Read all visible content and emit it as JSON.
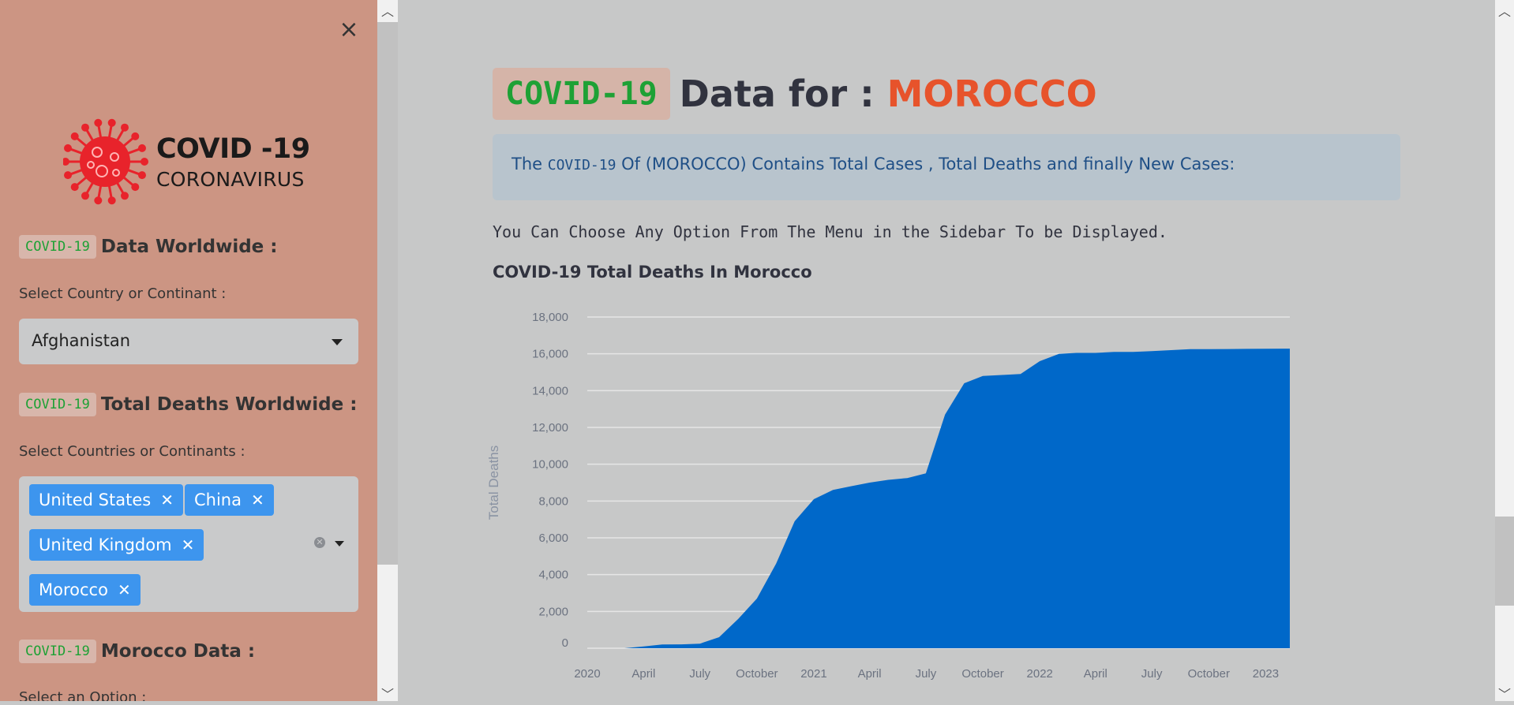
{
  "sidebar": {
    "close_label": "×",
    "logo": {
      "title": "COVID -19",
      "subtitle": "CORONAVIRUS"
    },
    "sections": [
      {
        "badge": "COVID-19",
        "heading": "Data Worldwide :",
        "label": "Select Country or Continant :",
        "select_value": "Afghanistan"
      },
      {
        "badge": "COVID-19",
        "heading": "Total Deaths Worldwide :",
        "label": "Select Countries or Continants :",
        "tags": [
          "United States",
          "China",
          "United Kingdom",
          "Morocco"
        ]
      },
      {
        "badge": "COVID-19",
        "heading": "Morocco Data :",
        "label": "Select an Option :"
      }
    ]
  },
  "main": {
    "title_badge": "COVID-19",
    "title_text": "Data for :",
    "title_country": "MOROCCO",
    "info_prefix": "The",
    "info_code": "COVID-19",
    "info_suffix": "Of (MOROCCO) Contains Total Cases , Total Deaths and finally New Cases:",
    "hint": "You Can Choose Any Option From The Menu in the Sidebar To be Displayed.",
    "chart_title": "COVID-19 Total Deaths In Morocco"
  },
  "colors": {
    "sidebar_bg": "#cc9583",
    "main_bg": "#c7c8c8",
    "area_fill": "#0068c9",
    "tag_bg": "#3d95ee",
    "accent_green": "#1ea135",
    "accent_orange": "#e7532b"
  },
  "chart_data": {
    "type": "area",
    "title": "COVID-19 Total Deaths In Morocco",
    "xlabel": "",
    "ylabel": "Total Deaths",
    "ylim": [
      0,
      18000
    ],
    "y_ticks": [
      "0",
      "2,000",
      "4,000",
      "6,000",
      "8,000",
      "10,000",
      "12,000",
      "14,000",
      "16,000",
      "18,000"
    ],
    "x_ticks": [
      "2020",
      "April",
      "July",
      "October",
      "2021",
      "April",
      "July",
      "October",
      "2022",
      "April",
      "July",
      "October",
      "2023"
    ],
    "grid": true,
    "series": [
      {
        "x": [
          "2020-03-01",
          "2020-04-01",
          "2020-05-01",
          "2020-06-01",
          "2020-07-01",
          "2020-08-01",
          "2020-09-01",
          "2020-10-01",
          "2020-11-01",
          "2020-12-01",
          "2021-01-01",
          "2021-02-01",
          "2021-03-01",
          "2021-04-01",
          "2021-05-01",
          "2021-06-01",
          "2021-07-01",
          "2021-08-01",
          "2021-09-01",
          "2021-10-01",
          "2021-11-01",
          "2021-12-01",
          "2022-01-01",
          "2022-02-01",
          "2022-03-01",
          "2022-04-01",
          "2022-05-01",
          "2022-06-01",
          "2022-07-01",
          "2022-08-01",
          "2022-09-01",
          "2022-10-01",
          "2022-11-01",
          "2022-12-01",
          "2023-01-01",
          "2023-02-01",
          "2023-03-01"
        ],
        "values": [
          0,
          100,
          200,
          210,
          250,
          600,
          1600,
          2700,
          4600,
          6900,
          8100,
          8600,
          8800,
          9000,
          9150,
          9250,
          9500,
          12700,
          14400,
          14800,
          14850,
          14900,
          15600,
          16000,
          16050,
          16050,
          16100,
          16100,
          16150,
          16200,
          16250,
          16250,
          16260,
          16270,
          16275,
          16280,
          16280
        ]
      }
    ]
  }
}
